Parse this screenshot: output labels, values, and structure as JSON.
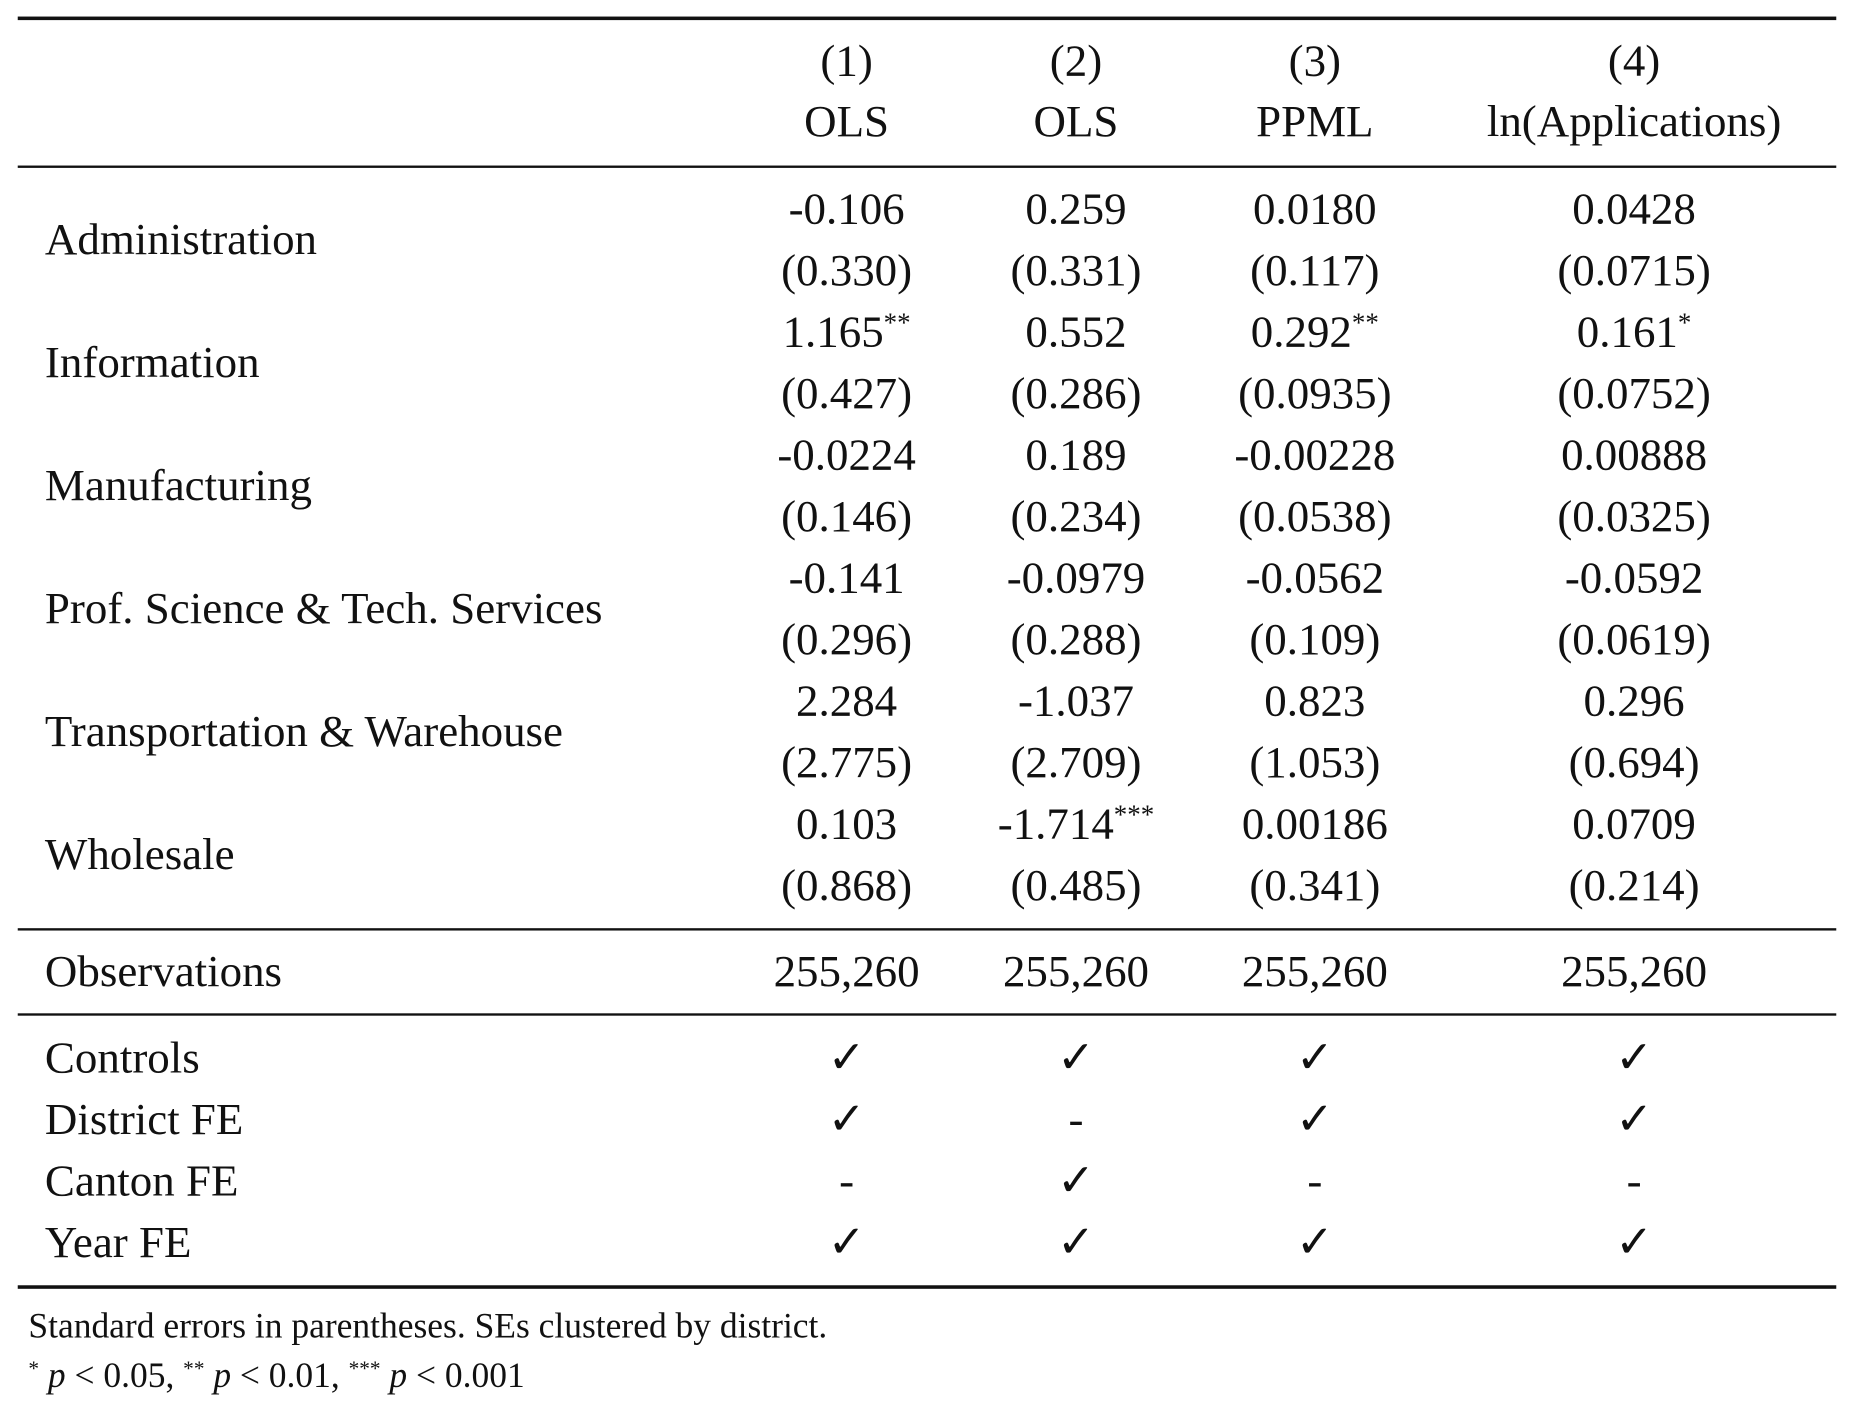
{
  "table": {
    "columns": [
      {
        "number": "(1)",
        "model": "OLS"
      },
      {
        "number": "(2)",
        "model": "OLS"
      },
      {
        "number": "(3)",
        "model": "PPML"
      },
      {
        "number": "(4)",
        "model": "ln(Applications)"
      }
    ],
    "rows": [
      {
        "label": "Administration",
        "cells": [
          {
            "coef": "-0.106",
            "se": "(0.330)"
          },
          {
            "coef": "0.259",
            "se": "(0.331)"
          },
          {
            "coef": "0.0180",
            "se": "(0.117)"
          },
          {
            "coef": "0.0428",
            "se": "(0.0715)"
          }
        ]
      },
      {
        "label": "Information",
        "cells": [
          {
            "coef": "1.165",
            "stars": "**",
            "se": "(0.427)"
          },
          {
            "coef": "0.552",
            "se": "(0.286)"
          },
          {
            "coef": "0.292",
            "stars": "**",
            "se": "(0.0935)"
          },
          {
            "coef": "0.161",
            "stars": "*",
            "se": "(0.0752)"
          }
        ]
      },
      {
        "label": "Manufacturing",
        "cells": [
          {
            "coef": "-0.0224",
            "se": "(0.146)"
          },
          {
            "coef": "0.189",
            "se": "(0.234)"
          },
          {
            "coef": "-0.00228",
            "se": "(0.0538)"
          },
          {
            "coef": "0.00888",
            "se": "(0.0325)"
          }
        ]
      },
      {
        "label": "Prof. Science & Tech. Services",
        "cells": [
          {
            "coef": "-0.141",
            "se": "(0.296)"
          },
          {
            "coef": "-0.0979",
            "se": "(0.288)"
          },
          {
            "coef": "-0.0562",
            "se": "(0.109)"
          },
          {
            "coef": "-0.0592",
            "se": "(0.0619)"
          }
        ]
      },
      {
        "label": "Transportation & Warehouse",
        "cells": [
          {
            "coef": "2.284",
            "se": "(2.775)"
          },
          {
            "coef": "-1.037",
            "se": "(2.709)"
          },
          {
            "coef": "0.823",
            "se": "(1.053)"
          },
          {
            "coef": "0.296",
            "se": "(0.694)"
          }
        ]
      },
      {
        "label": "Wholesale",
        "cells": [
          {
            "coef": "0.103",
            "se": "(0.868)"
          },
          {
            "coef": "-1.714",
            "stars": "***",
            "se": "(0.485)"
          },
          {
            "coef": "0.00186",
            "se": "(0.341)"
          },
          {
            "coef": "0.0709",
            "se": "(0.214)"
          }
        ]
      }
    ],
    "observations": {
      "label": "Observations",
      "values": [
        "255,260",
        "255,260",
        "255,260",
        "255,260"
      ]
    },
    "fixed_effects": [
      {
        "label": "Controls",
        "marks": [
          "✓",
          "✓",
          "✓",
          "✓"
        ]
      },
      {
        "label": "District FE",
        "marks": [
          "✓",
          "-",
          "✓",
          "✓"
        ]
      },
      {
        "label": "Canton FE",
        "marks": [
          "-",
          "✓",
          "-",
          "-"
        ]
      },
      {
        "label": "Year FE",
        "marks": [
          "✓",
          "✓",
          "✓",
          "✓"
        ]
      }
    ]
  },
  "notes": {
    "text": "Standard errors in parentheses. SEs clustered by district.",
    "significance": [
      {
        "stars": "*",
        "symbol": "p",
        "bound": "< 0.05,"
      },
      {
        "stars": "**",
        "symbol": "p",
        "bound": "< 0.01,"
      },
      {
        "stars": "***",
        "symbol": "p",
        "bound": "< 0.001"
      }
    ]
  }
}
